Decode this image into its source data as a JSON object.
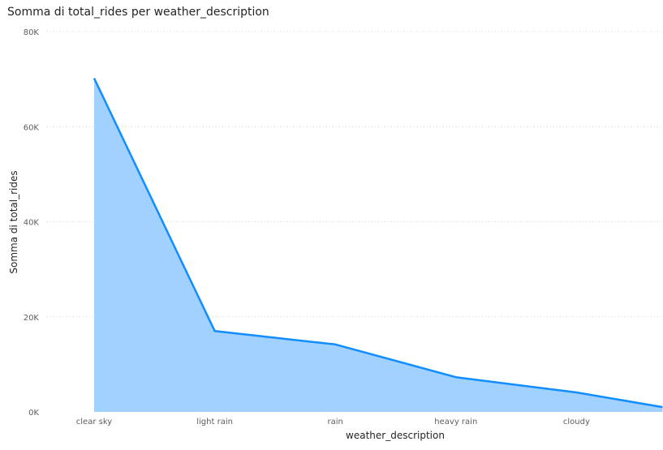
{
  "chart_data": {
    "type": "area",
    "title": "Somma di total_rides per weather_description",
    "xlabel": "weather_description",
    "ylabel": "Somma di total_rides",
    "categories": [
      "clear sky",
      "light rain",
      "rain",
      "heavy rain",
      "cloudy",
      ""
    ],
    "series": [
      {
        "values": [
          70200,
          17000,
          14200,
          7300,
          4100,
          1000
        ]
      }
    ],
    "ylim": [
      0,
      80000
    ],
    "yticks": [
      0,
      20000,
      40000,
      60000,
      80000
    ],
    "ytick_labels": [
      "0K",
      "20K",
      "40K",
      "60K",
      "80K"
    ],
    "grid": true,
    "colors": {
      "line": "#118DFF",
      "fill": "#A0D1FF",
      "grid": "#D0D0D0"
    }
  }
}
